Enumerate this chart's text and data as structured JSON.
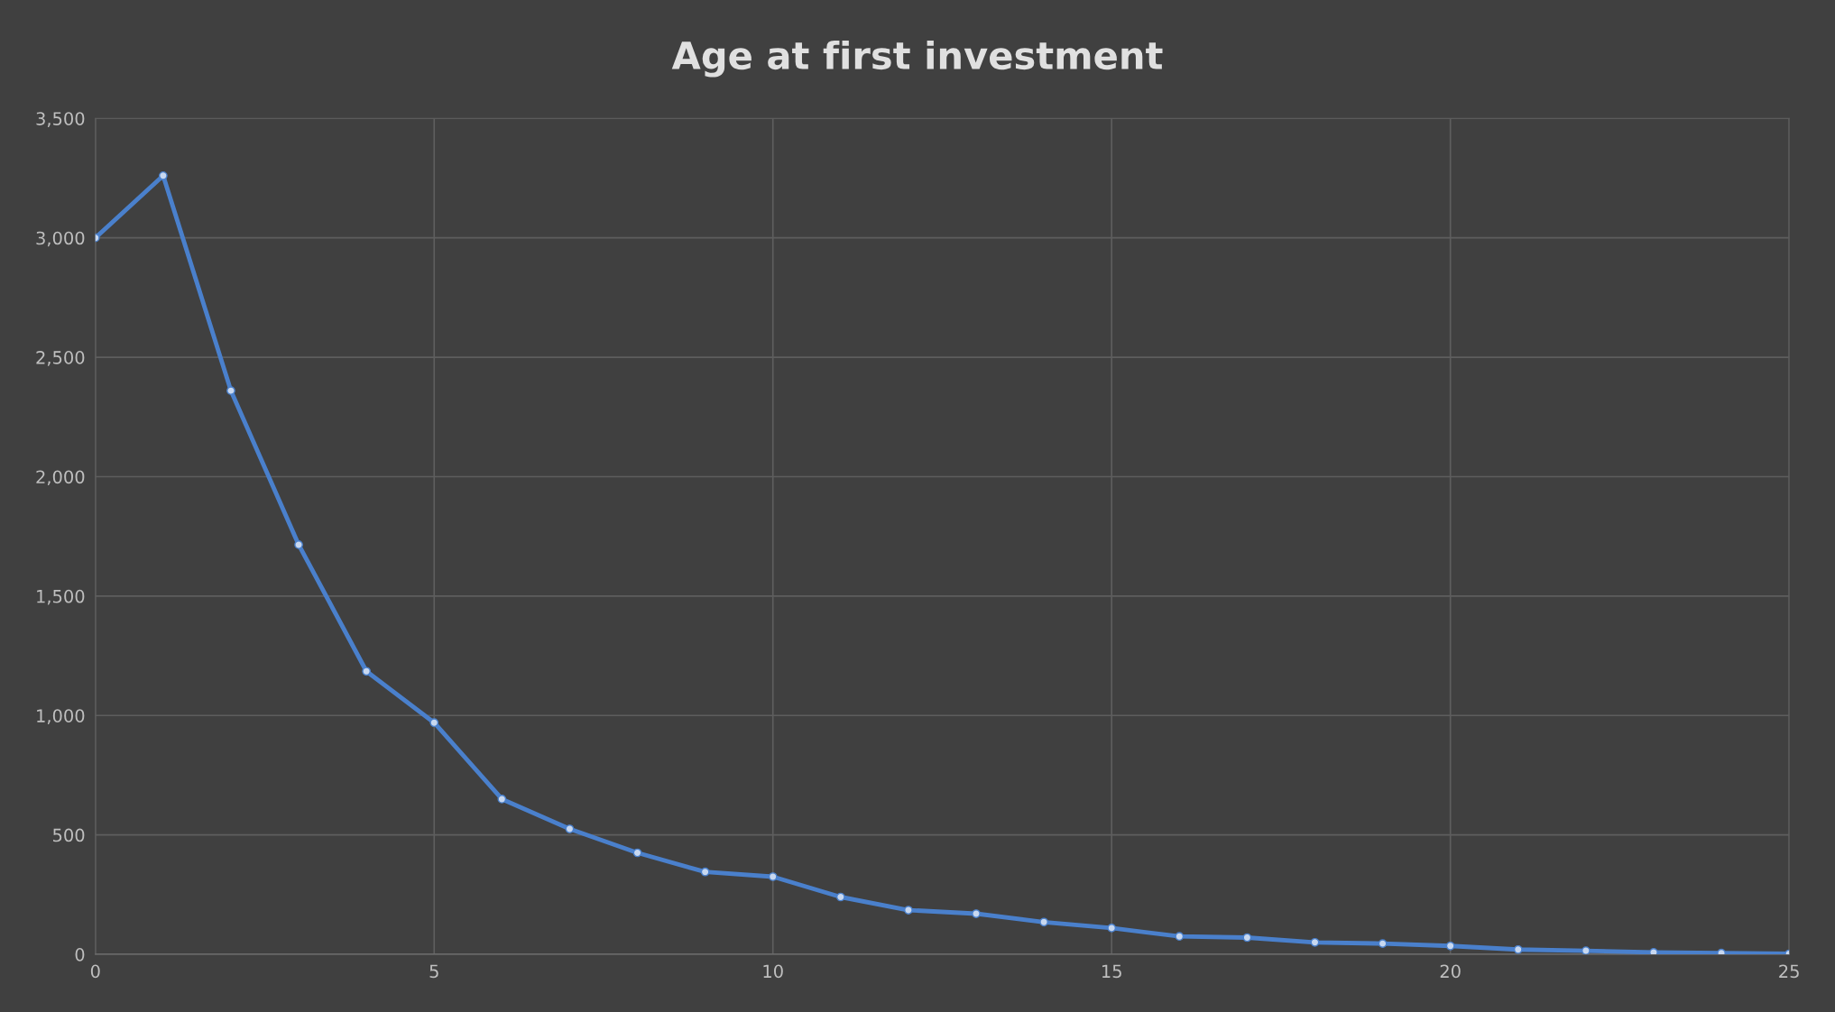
{
  "chart_data": {
    "type": "line",
    "title": "Age at first investment",
    "x": [
      0,
      1,
      2,
      3,
      4,
      5,
      6,
      7,
      8,
      9,
      10,
      11,
      12,
      13,
      14,
      15,
      16,
      17,
      18,
      19,
      20,
      21,
      22,
      23,
      24,
      25
    ],
    "series": [
      {
        "color": "#4a80cc",
        "values": [
          3000,
          3260,
          2360,
          1715,
          1185,
          970,
          650,
          525,
          425,
          345,
          325,
          240,
          185,
          170,
          135,
          110,
          75,
          70,
          50,
          45,
          35,
          20,
          15,
          8,
          5,
          2
        ]
      }
    ],
    "xlim": [
      0,
      25
    ],
    "xticks": [
      0,
      5,
      10,
      15,
      20,
      25
    ],
    "ylim": [
      0,
      3500
    ],
    "yticks": [
      {
        "value": 0,
        "label": "0"
      },
      {
        "value": 500,
        "label": "500"
      },
      {
        "value": 1000,
        "label": "1,000"
      },
      {
        "value": 1500,
        "label": "1,500"
      },
      {
        "value": 2000,
        "label": "2,000"
      },
      {
        "value": 2500,
        "label": "2,500"
      },
      {
        "value": 3000,
        "label": "3,000"
      },
      {
        "value": 3500,
        "label": "3,500"
      }
    ],
    "grid": true,
    "marker": "circle",
    "line_style": "solid",
    "legend": false
  }
}
